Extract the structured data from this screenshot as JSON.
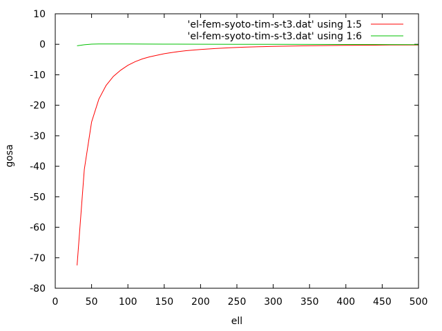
{
  "chart_data": {
    "type": "line",
    "xlabel": "ell",
    "ylabel": "gosa",
    "xlim": [
      0,
      500
    ],
    "ylim": [
      -80,
      10
    ],
    "x_ticks": [
      "0",
      "50",
      "100",
      "150",
      "200",
      "250",
      "300",
      "350",
      "400",
      "450",
      "500"
    ],
    "y_ticks": [
      "10",
      "0",
      "-10",
      "-20",
      "-30",
      "-40",
      "-50",
      "-60",
      "-70",
      "-80"
    ],
    "legend_position": "top-right",
    "grid": false,
    "series": [
      {
        "name": "'el-fem-syoto-tim-s-t3.dat' using 1:5",
        "color": "#ff0000",
        "x": [
          30,
          40,
          50,
          60,
          70,
          80,
          90,
          100,
          110,
          120,
          130,
          140,
          150,
          160,
          170,
          180,
          190,
          200,
          220,
          240,
          260,
          280,
          300,
          320,
          340,
          360,
          380,
          400,
          420,
          440,
          460,
          480,
          500
        ],
        "y": [
          -72.5,
          -41,
          -25.5,
          -18,
          -13.5,
          -10.5,
          -8.5,
          -6.9,
          -5.7,
          -4.8,
          -4.1,
          -3.6,
          -3.1,
          -2.7,
          -2.4,
          -2.1,
          -1.9,
          -1.7,
          -1.4,
          -1.15,
          -0.95,
          -0.8,
          -0.7,
          -0.6,
          -0.52,
          -0.45,
          -0.4,
          -0.35,
          -0.31,
          -0.28,
          -0.25,
          -0.23,
          -0.21
        ]
      },
      {
        "name": "'el-fem-syoto-tim-s-t3.dat' using 1:6",
        "color": "#00c000",
        "x": [
          30,
          40,
          50,
          60,
          80,
          100,
          120,
          150,
          200,
          250,
          300,
          350,
          400,
          450,
          500
        ],
        "y": [
          -0.5,
          -0.15,
          0.05,
          0.1,
          0.12,
          0.1,
          0.08,
          0.05,
          0.02,
          0.0,
          -0.02,
          -0.04,
          -0.06,
          -0.08,
          -0.1
        ]
      }
    ]
  }
}
